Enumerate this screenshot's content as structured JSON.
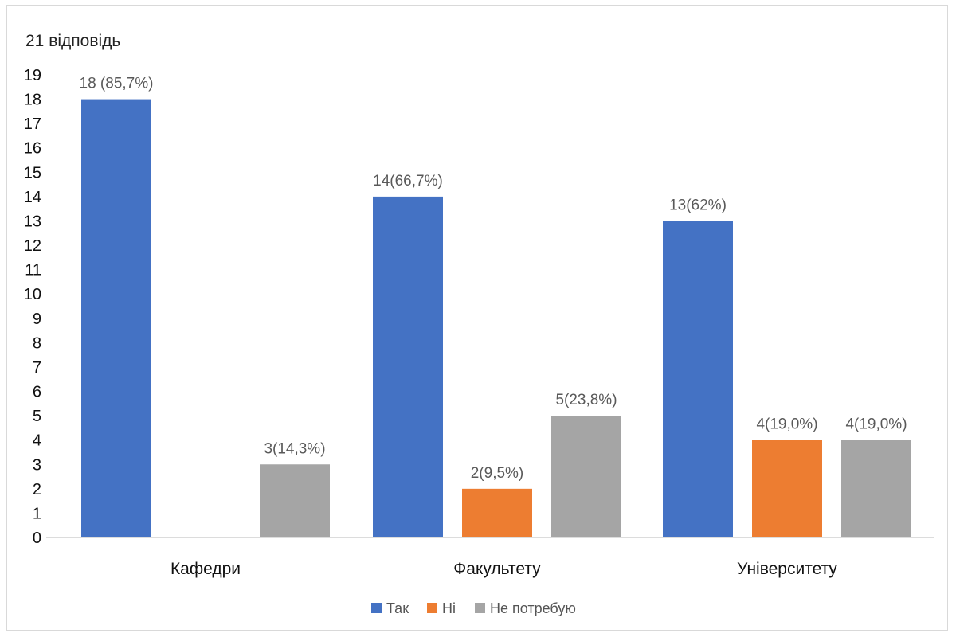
{
  "chart_data": {
    "type": "bar",
    "title": "",
    "subtitle": "21 відповідь",
    "xlabel": "",
    "ylabel": "",
    "categories": [
      "Кафедри",
      "Факультету",
      "Університету"
    ],
    "ylim": [
      0,
      19
    ],
    "yticks": [
      0,
      1,
      2,
      3,
      4,
      5,
      6,
      7,
      8,
      9,
      10,
      11,
      12,
      13,
      14,
      15,
      16,
      17,
      18,
      19
    ],
    "grid": false,
    "legend_position": "bottom",
    "series": [
      {
        "name": "Так",
        "color": "#4472C4",
        "values": [
          18,
          14,
          13
        ],
        "labels": [
          "18 (85,7%)",
          "14(66,7%)",
          "13(62%)"
        ]
      },
      {
        "name": "Ні",
        "color": "#ED7D31",
        "values": [
          0,
          2,
          4
        ],
        "labels": [
          "",
          "2(9,5%)",
          "4(19,0%)"
        ]
      },
      {
        "name": "Не потребую",
        "color": "#A5A5A5",
        "values": [
          3,
          5,
          4
        ],
        "labels": [
          "3(14,3%)",
          "5(23,8%)",
          "4(19,0%)"
        ]
      }
    ]
  }
}
